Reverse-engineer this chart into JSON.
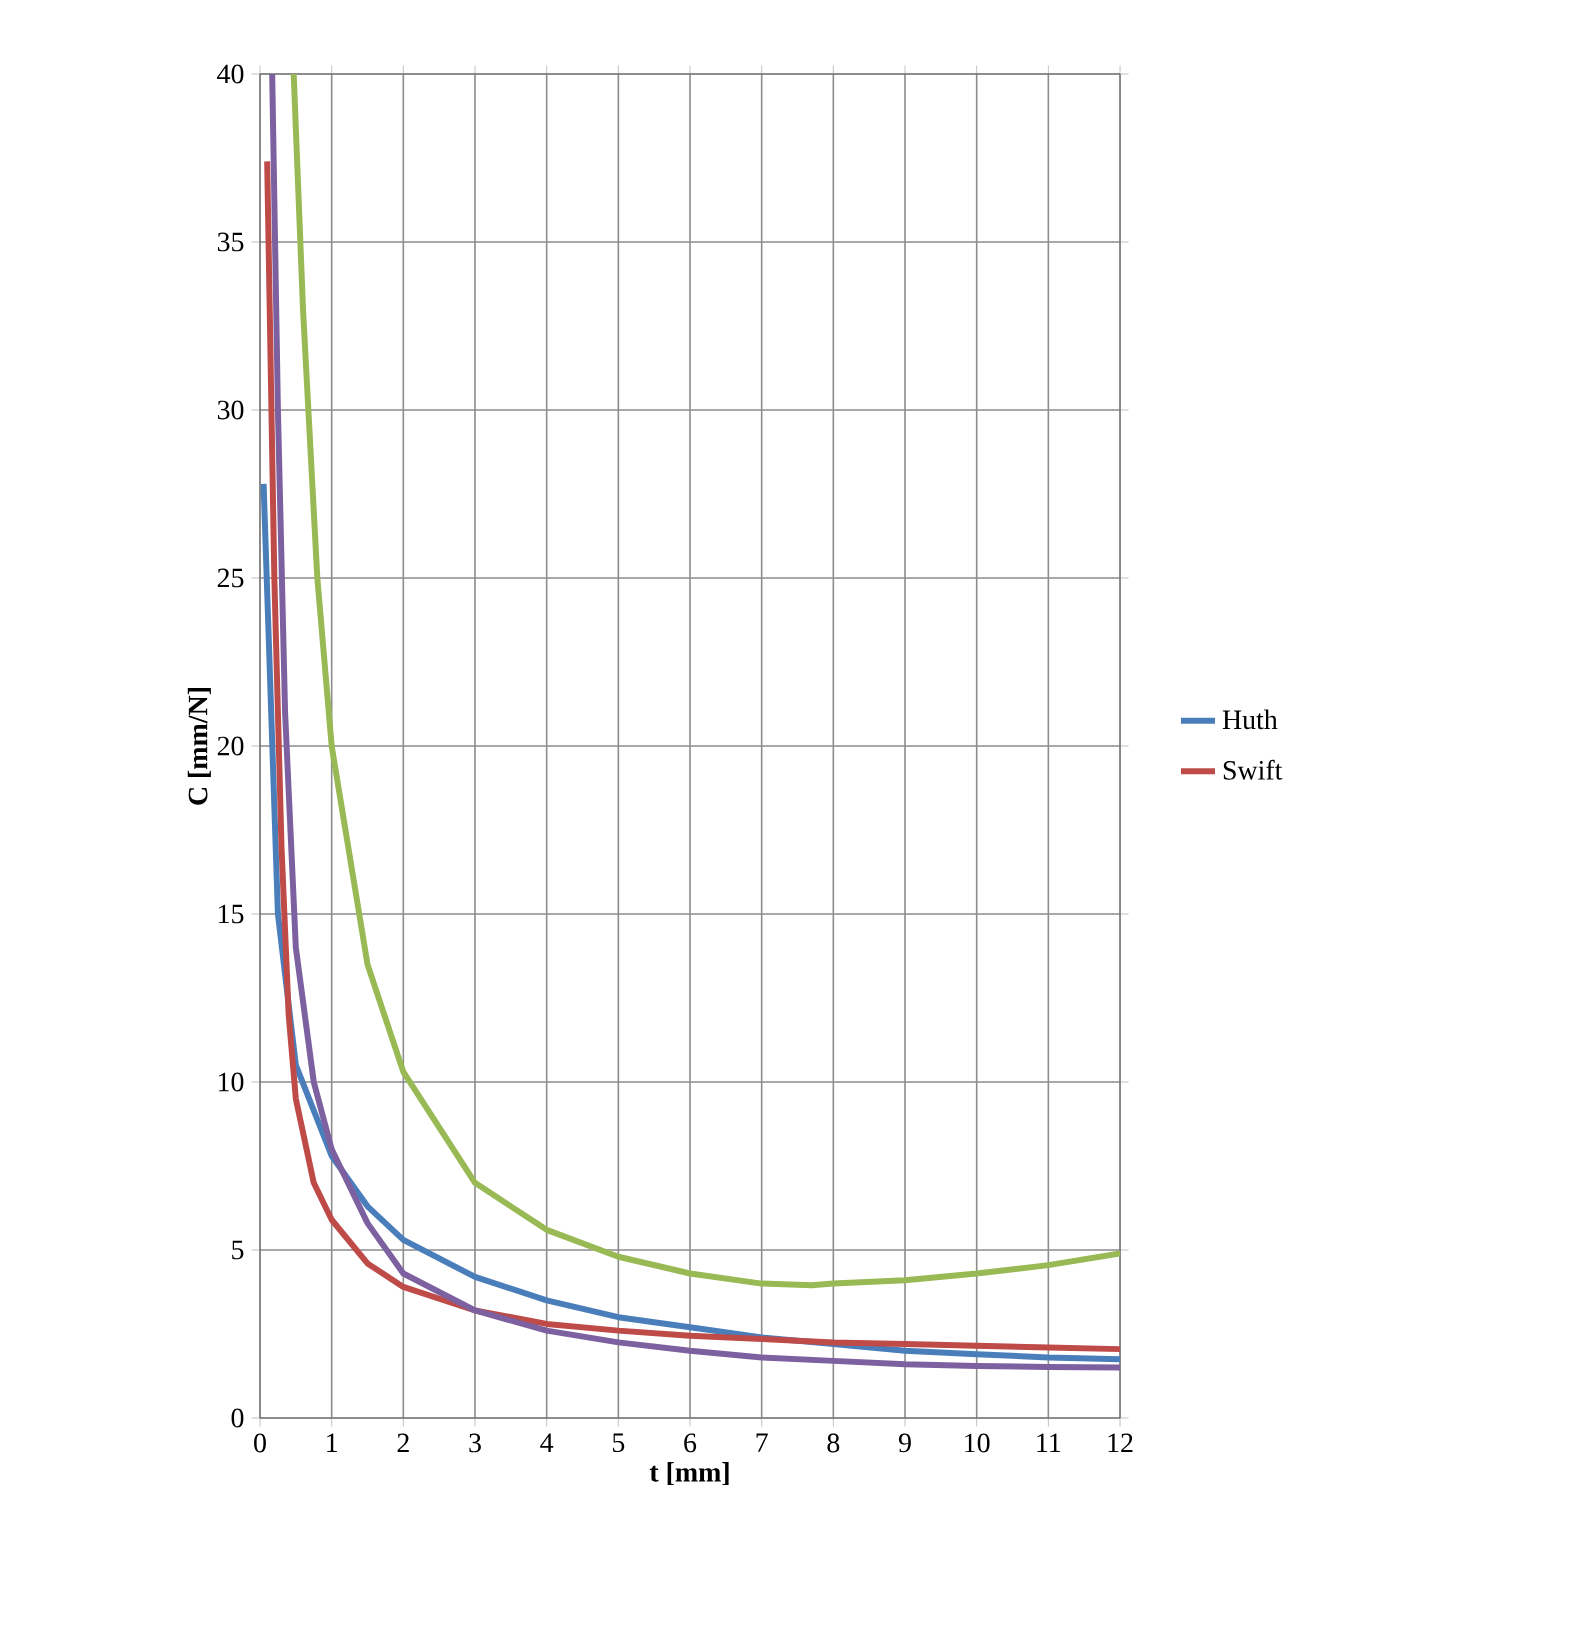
{
  "chart_data": {
    "type": "line",
    "xlabel": "t [mm]",
    "ylabel": "C [mm/N]",
    "xlim": [
      0,
      12
    ],
    "ylim": [
      0,
      40
    ],
    "xticks": [
      0,
      1,
      2,
      3,
      4,
      5,
      6,
      7,
      8,
      9,
      10,
      11,
      12
    ],
    "yticks": [
      0,
      5,
      10,
      15,
      20,
      25,
      30,
      35,
      40
    ],
    "grid": true,
    "legend": "right",
    "marker": "none",
    "line_style": "solid",
    "series": [
      {
        "name": "Huth",
        "color": "#4a7ebb",
        "x": [
          0.05,
          0.25,
          0.5,
          1,
          1.5,
          2,
          3,
          4,
          5,
          6,
          7,
          8,
          9,
          10,
          11,
          12
        ],
        "values": [
          27.8,
          15,
          10.5,
          7.8,
          6.3,
          5.3,
          4.2,
          3.5,
          3.0,
          2.7,
          2.4,
          2.2,
          2.0,
          1.9,
          1.8,
          1.75
        ]
      },
      {
        "name": "Swift",
        "color": "#be4b48",
        "x": [
          0.1,
          0.2,
          0.3,
          0.4,
          0.5,
          0.75,
          1,
          1.5,
          2,
          3,
          4,
          5,
          6,
          7,
          8,
          9,
          10,
          11,
          12
        ],
        "values": [
          37.4,
          25,
          17,
          12,
          9.5,
          7,
          5.9,
          4.6,
          3.9,
          3.2,
          2.8,
          2.6,
          2.45,
          2.35,
          2.25,
          2.2,
          2.15,
          2.1,
          2.05
        ]
      },
      {
        "color": "#98b954",
        "x": [
          0.47,
          0.6,
          0.8,
          1,
          1.5,
          2,
          3,
          4,
          5,
          6,
          7,
          7.7,
          8,
          9,
          10,
          11,
          12
        ],
        "values": [
          40,
          33,
          25,
          20,
          13.5,
          10.3,
          7,
          5.6,
          4.8,
          4.3,
          4.0,
          3.95,
          4.0,
          4.1,
          4.3,
          4.55,
          4.9
        ]
      },
      {
        "color": "#7d60a0",
        "x": [
          0.17,
          0.25,
          0.35,
          0.5,
          0.75,
          1,
          1.5,
          2,
          3,
          4,
          5,
          6,
          7,
          8,
          9,
          10,
          11,
          12
        ],
        "values": [
          40,
          30,
          21,
          14,
          10,
          8,
          5.8,
          4.3,
          3.2,
          2.6,
          2.25,
          2.0,
          1.8,
          1.7,
          1.6,
          1.55,
          1.52,
          1.5
        ]
      }
    ]
  }
}
